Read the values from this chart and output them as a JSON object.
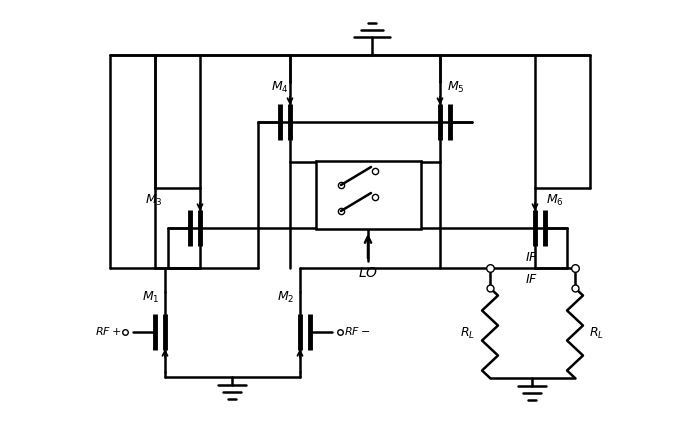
{
  "background_color": "#ffffff",
  "line_color": "#000000",
  "line_width": 1.8,
  "figsize": [
    6.74,
    4.36
  ],
  "dpi": 100
}
